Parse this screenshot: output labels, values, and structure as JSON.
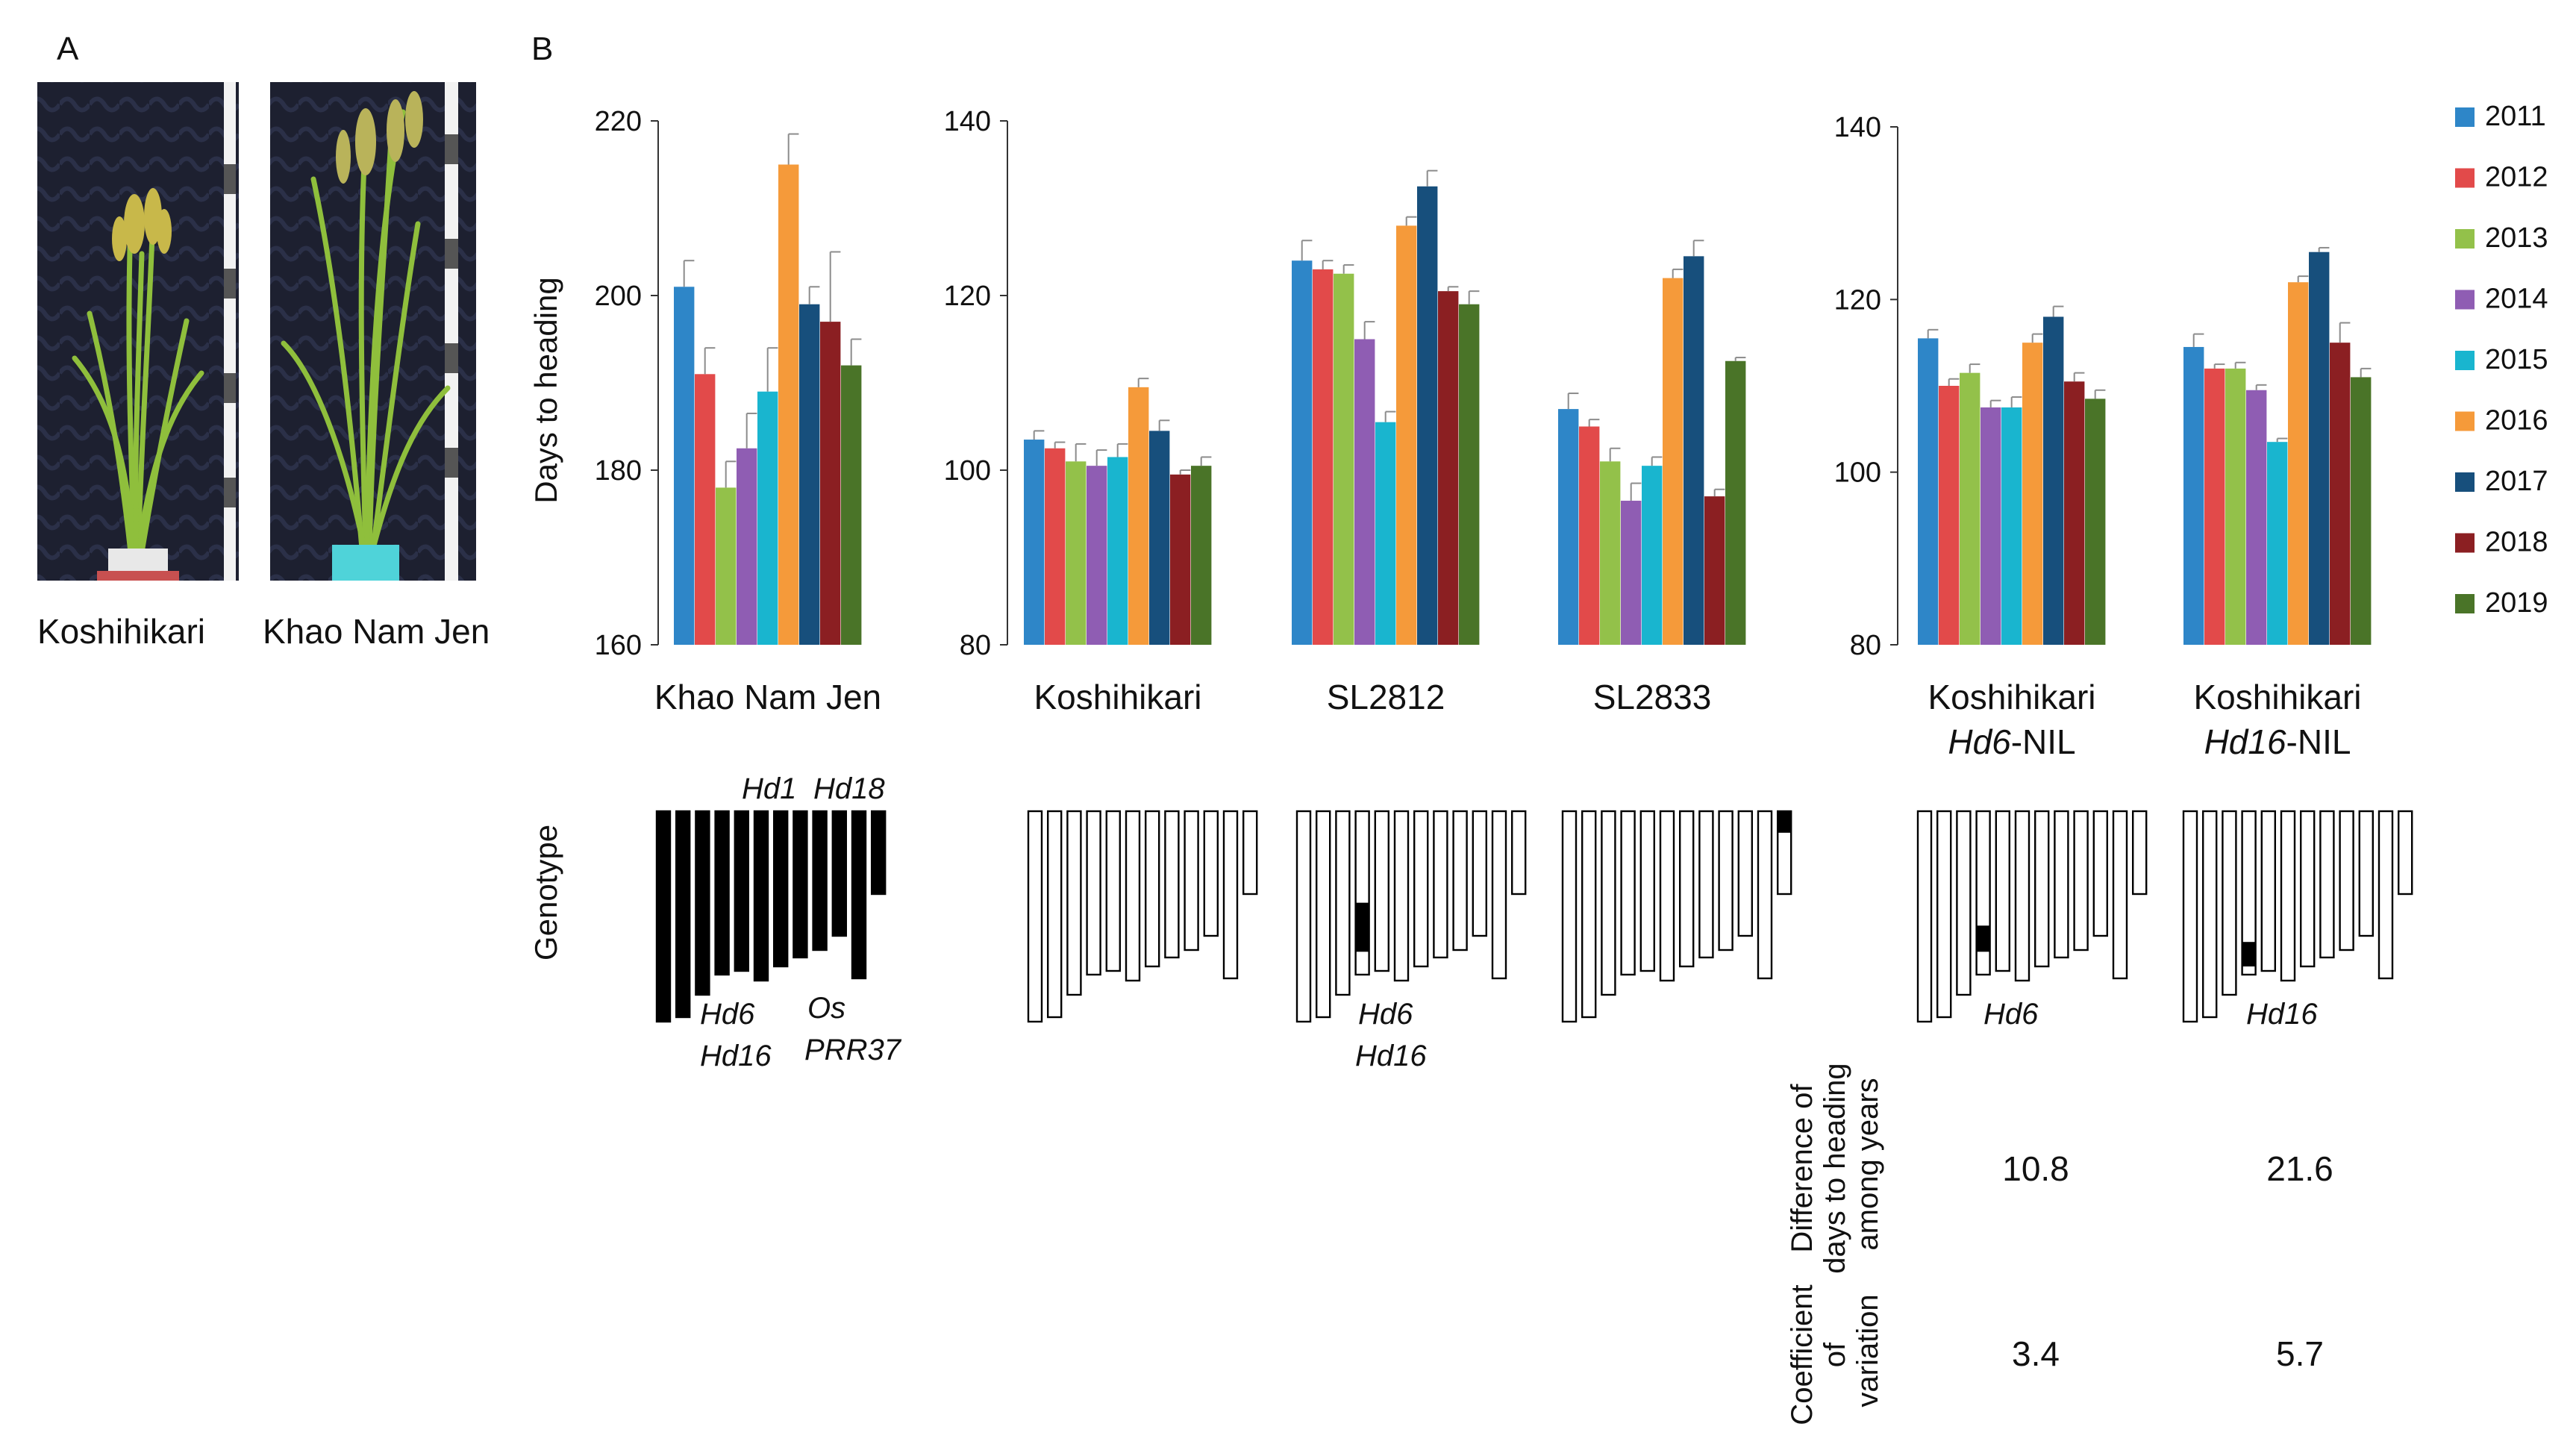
{
  "panels": {
    "a": "A",
    "b": "B"
  },
  "photos": [
    {
      "label": "Koshihikari"
    },
    {
      "label": "Khao Nam Jen"
    }
  ],
  "years": [
    "2011",
    "2012",
    "2013",
    "2014",
    "2015",
    "2016",
    "2017",
    "2018",
    "2019"
  ],
  "colors": [
    "#2e86c8",
    "#e24a4a",
    "#93c14a",
    "#8f5db3",
    "#19b5cf",
    "#f59a3a",
    "#174f7c",
    "#8b1f22",
    "#4a7428"
  ],
  "y_axis_title": "Days to heading",
  "genotype_label": "Genotype",
  "chart_data": [
    {
      "type": "bar",
      "title": "",
      "ylabel": "Days to heading",
      "ylim": [
        160,
        220
      ],
      "yticks": [
        "160",
        "180",
        "200",
        "220"
      ],
      "categories": [
        {
          "name": "Khao Nam Jen",
          "line1": "Khao Nam Jen"
        }
      ],
      "series_names": [
        "2011",
        "2012",
        "2013",
        "2014",
        "2015",
        "2016",
        "2017",
        "2018",
        "2019"
      ],
      "values": [
        [
          201,
          191,
          178,
          182.5,
          189,
          215,
          199,
          197,
          192
        ]
      ],
      "errors": [
        [
          3,
          3,
          3,
          4,
          5,
          3.5,
          2,
          8,
          3
        ]
      ]
    },
    {
      "type": "bar",
      "title": "",
      "ylabel": "",
      "ylim": [
        80,
        140
      ],
      "yticks": [
        "80",
        "100",
        "120",
        "140"
      ],
      "categories": [
        {
          "name": "Koshihikari",
          "line1": "Koshihikari"
        },
        {
          "name": "SL2812",
          "line1": "SL2812"
        },
        {
          "name": "SL2833",
          "line1": "SL2833"
        }
      ],
      "series_names": [
        "2011",
        "2012",
        "2013",
        "2014",
        "2015",
        "2016",
        "2017",
        "2018",
        "2019"
      ],
      "values": [
        [
          103.5,
          102.5,
          101,
          100.5,
          101.5,
          109.5,
          104.5,
          99.5,
          100.5
        ],
        [
          124,
          123,
          122.5,
          115,
          105.5,
          128,
          132.5,
          120.5,
          119
        ],
        [
          107,
          105,
          101,
          96.5,
          100.5,
          122,
          124.5,
          97,
          112.5
        ]
      ],
      "errors": [
        [
          1,
          0.7,
          2,
          1.8,
          1.5,
          1,
          1.2,
          0.5,
          1
        ],
        [
          2.3,
          1,
          1,
          2,
          1.2,
          1,
          1.8,
          0.5,
          1.5
        ],
        [
          1.8,
          0.8,
          1.5,
          2,
          1,
          1,
          1.8,
          0.8,
          0.4
        ]
      ]
    },
    {
      "type": "bar",
      "title": "",
      "ylabel": "",
      "ylim": [
        80,
        140
      ],
      "yticks": [
        "80",
        "100",
        "120",
        "140"
      ],
      "categories": [
        {
          "name": "Koshihikari Hd6-NIL",
          "line1": "Koshihikari",
          "gene": "Hd6",
          "suffix": "-NIL"
        },
        {
          "name": "Koshihikari Hd16-NIL",
          "line1": "Koshihikari",
          "gene": "Hd16",
          "suffix": "-NIL"
        }
      ],
      "series_names": [
        "2011",
        "2012",
        "2013",
        "2014",
        "2015",
        "2016",
        "2017",
        "2018",
        "2019"
      ],
      "values": [
        [
          115.5,
          110,
          111.5,
          107.5,
          107.5,
          115,
          118,
          110.5,
          108.5
        ],
        [
          114.5,
          112,
          112,
          109.5,
          103.5,
          122,
          125.5,
          115,
          111
        ]
      ],
      "errors": [
        [
          1,
          0.8,
          1,
          0.8,
          1.2,
          1,
          1.2,
          1,
          1
        ],
        [
          1.5,
          0.5,
          0.7,
          0.6,
          0.4,
          0.7,
          0.5,
          2.3,
          1
        ]
      ]
    }
  ],
  "genotypes": [
    {
      "cells": [
        [
          1
        ],
        [
          1
        ],
        [
          1
        ],
        [
          1
        ],
        [
          1
        ],
        [
          1
        ],
        [
          1
        ],
        [
          1
        ],
        [
          1
        ],
        [
          1
        ],
        [
          1
        ],
        [
          1
        ]
      ]
    },
    {
      "cells": [
        [
          0
        ],
        [
          0
        ],
        [
          0
        ],
        [
          0
        ],
        [
          0
        ],
        [
          0
        ],
        [
          0
        ],
        [
          0
        ],
        [
          0
        ],
        [
          0
        ],
        [
          0
        ],
        [
          0
        ]
      ]
    },
    {
      "cells": [
        [
          0
        ],
        [
          0
        ],
        [
          0
        ],
        [
          0,
          0.56,
          0.86
        ],
        [
          0
        ],
        [
          0
        ],
        [
          0
        ],
        [
          0
        ],
        [
          0
        ],
        [
          0
        ],
        [
          0
        ],
        [
          0
        ]
      ]
    },
    {
      "cells": [
        [
          0
        ],
        [
          0
        ],
        [
          0
        ],
        [
          0
        ],
        [
          0
        ],
        [
          0
        ],
        [
          0
        ],
        [
          0
        ],
        [
          0
        ],
        [
          0
        ],
        [
          0
        ],
        [
          0,
          0,
          0.26
        ]
      ]
    },
    {
      "cells": [
        [
          0
        ],
        [
          0
        ],
        [
          0
        ],
        [
          0,
          0.7,
          0.86
        ],
        [
          0
        ],
        [
          0
        ],
        [
          0
        ],
        [
          0
        ],
        [
          0
        ],
        [
          0
        ],
        [
          0
        ],
        [
          0
        ]
      ]
    },
    {
      "cells": [
        [
          0
        ],
        [
          0
        ],
        [
          0
        ],
        [
          0,
          0.8,
          0.95
        ],
        [
          0
        ],
        [
          0
        ],
        [
          0
        ],
        [
          0
        ],
        [
          0
        ],
        [
          0
        ],
        [
          0
        ],
        [
          0
        ]
      ]
    }
  ],
  "gene_labels": {
    "knj_hd1": "Hd1",
    "knj_hd18": "Hd18",
    "knj_hd6": "Hd6",
    "knj_hd16": "Hd16",
    "knj_os": "Os",
    "knj_prr37": "PRR37",
    "sl2812_hd6": "Hd6",
    "sl2812_hd16": "Hd16",
    "nil1_gene": "Hd6",
    "nil2_gene": "Hd16"
  },
  "metrics": {
    "difference_label": [
      "Difference of",
      "days to heading",
      "among years"
    ],
    "cv_label": [
      "Coefficient",
      "of",
      "variation"
    ],
    "difference_values": [
      "10.8",
      "21.6"
    ],
    "cv_values": [
      "3.4",
      "5.7"
    ]
  }
}
